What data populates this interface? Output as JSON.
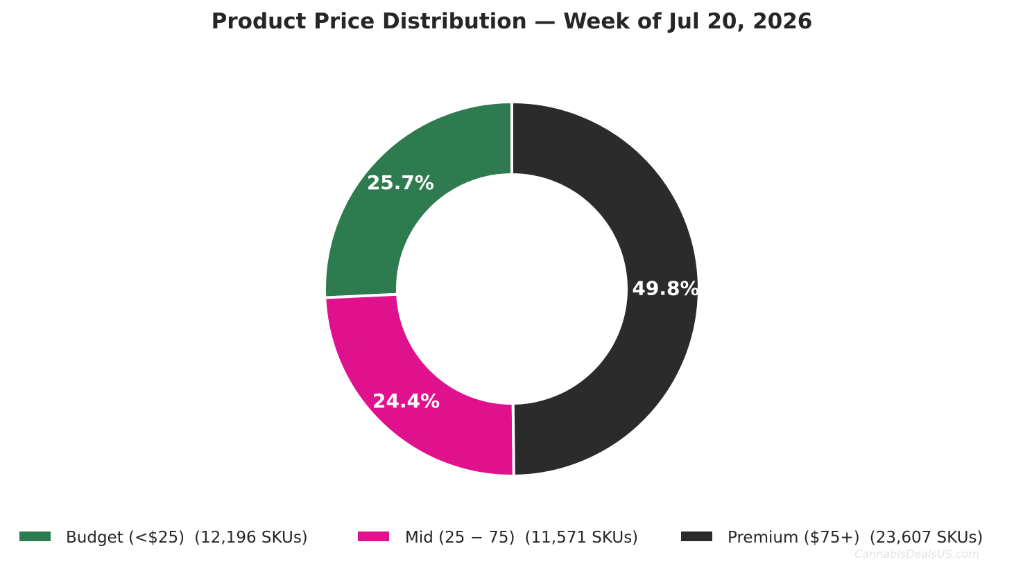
{
  "chart_data": {
    "type": "pie",
    "donut": true,
    "title": "Product Price Distribution — Week of Jul 20, 2026",
    "slices": [
      {
        "name": "Budget (<$25)",
        "count_label": "(12,196 SKUs)",
        "value": 12196,
        "percent_label": "25.7%",
        "color": "#2e7b4f"
      },
      {
        "name": "Mid ($25−$75)",
        "display_name": "Mid (25 − 75)",
        "count_label": "(11,571 SKUs)",
        "value": 11571,
        "percent_label": "24.4%",
        "color": "#e0118c"
      },
      {
        "name": "Premium ($75+)",
        "count_label": "(23,607 SKUs)",
        "value": 23607,
        "percent_label": "49.8%",
        "color": "#2b2b2b"
      }
    ],
    "start_angle": "12 o'clock",
    "direction": "counterclockwise",
    "legend_position": "bottom"
  },
  "watermark": "CannabisDealsUS.com"
}
